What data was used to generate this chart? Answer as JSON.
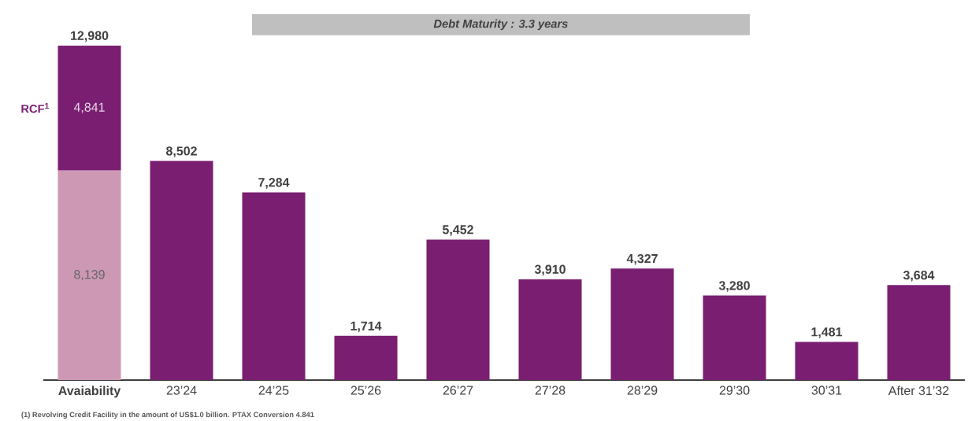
{
  "chart_data": {
    "type": "bar",
    "stacked": true,
    "categories": [
      "Avaiability",
      "23’24",
      "24’25",
      "25’26",
      "26’27",
      "27’28",
      "28’29",
      "29’30",
      "30’31",
      "After 31’32"
    ],
    "series": [
      {
        "color": "#cc98b4",
        "values": [
          8139,
          null,
          null,
          null,
          null,
          null,
          null,
          null,
          null,
          null
        ],
        "value_labels": [
          "8,139",
          null,
          null,
          null,
          null,
          null,
          null,
          null,
          null,
          null
        ]
      },
      {
        "name": "RCF$^{1}$",
        "color": "#7a1e72",
        "values": [
          4841,
          null,
          null,
          null,
          null,
          null,
          null,
          null,
          null,
          null
        ],
        "value_labels": [
          "4,841",
          null,
          null,
          null,
          null,
          null,
          null,
          null,
          null,
          null
        ]
      },
      {
        "color": "#7a1e72",
        "values": [
          null,
          8502,
          7284,
          1714,
          5452,
          3910,
          4327,
          3280,
          1481,
          3684
        ]
      }
    ],
    "totals": [
      "12,980",
      "8,502",
      "7,284",
      "1,714",
      "5,452",
      "3,910",
      "4,327",
      "3,280",
      "1,481",
      "3,684"
    ],
    "tick_labels": "x",
    "annotations": [
      "Debt Maturity : 3.3 years",
      "(1) Revolving Credit Facility in the amount of US$1.0 billion. PTAX Conversion 4.841"
    ]
  }
}
